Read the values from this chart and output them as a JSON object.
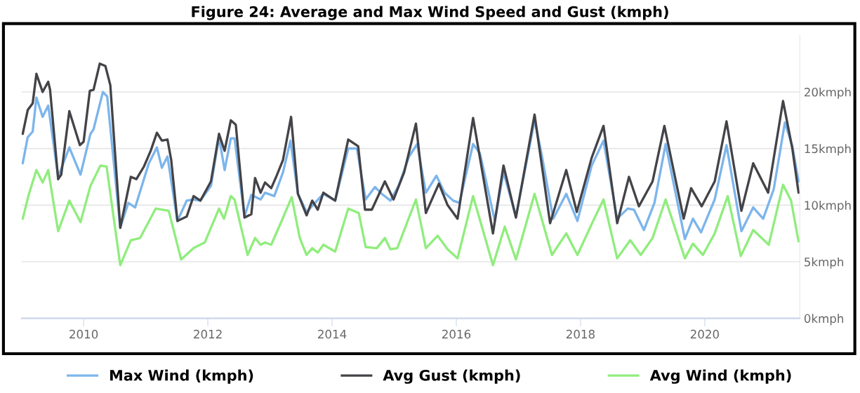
{
  "chart_data": {
    "type": "line",
    "title": "Figure 24: Average and Max Wind Speed and Gust (kmph)",
    "xlim": [
      2009.0,
      2021.53
    ],
    "xticks": [
      2010,
      2012,
      2014,
      2016,
      2018,
      2020
    ],
    "ylim": [
      0,
      25
    ],
    "yticks": [
      {
        "value": 0,
        "label": "0kmph"
      },
      {
        "value": 5,
        "label": "5kmph"
      },
      {
        "value": 10,
        "label": "10kmph"
      },
      {
        "value": 15,
        "label": "15kmph"
      },
      {
        "value": 20,
        "label": "20kmph"
      }
    ],
    "grid": "y",
    "legend": "bottom",
    "marker": "none",
    "line_style": "solid",
    "series": [
      {
        "name": "Max Wind (kmph)",
        "color": "#7cb5ec",
        "x": [
          2009.02,
          2009.1,
          2009.18,
          2009.24,
          2009.34,
          2009.43,
          2009.59,
          2009.77,
          2009.95,
          2010.11,
          2010.16,
          2010.31,
          2010.38,
          2010.59,
          2010.72,
          2010.83,
          2011.05,
          2011.18,
          2011.26,
          2011.35,
          2011.51,
          2011.66,
          2011.77,
          2011.88,
          2012.05,
          2012.18,
          2012.27,
          2012.37,
          2012.43,
          2012.59,
          2012.7,
          2012.85,
          2012.92,
          2013.07,
          2013.21,
          2013.33,
          2013.45,
          2013.59,
          2013.86,
          2014.05,
          2014.26,
          2014.4,
          2014.54,
          2014.69,
          2014.8,
          2014.94,
          2015.07,
          2015.24,
          2015.37,
          2015.51,
          2015.68,
          2015.81,
          2015.95,
          2016.05,
          2016.27,
          2016.38,
          2016.62,
          2016.76,
          2016.96,
          2017.26,
          2017.37,
          2017.56,
          2017.77,
          2017.95,
          2018.18,
          2018.37,
          2018.59,
          2018.76,
          2018.86,
          2019.02,
          2019.19,
          2019.37,
          2019.68,
          2019.81,
          2019.94,
          2020.16,
          2020.35,
          2020.59,
          2020.78,
          2020.94,
          2021.11,
          2021.29,
          2021.41,
          2021.51
        ],
        "values": [
          13.7,
          16.0,
          16.5,
          19.5,
          17.8,
          18.8,
          12.5,
          15.1,
          12.7,
          16.3,
          16.7,
          20.0,
          19.6,
          8.0,
          10.2,
          9.8,
          13.7,
          15.1,
          13.3,
          14.3,
          8.6,
          10.4,
          10.5,
          10.4,
          11.7,
          16.0,
          13.1,
          15.9,
          15.9,
          9.0,
          10.9,
          10.5,
          11.1,
          10.8,
          12.9,
          15.7,
          11.0,
          9.4,
          11.0,
          10.4,
          15.0,
          15.0,
          10.5,
          11.6,
          11.0,
          10.4,
          11.7,
          14.3,
          15.4,
          11.1,
          12.6,
          11.1,
          10.4,
          10.2,
          15.4,
          14.6,
          8.6,
          12.9,
          9.0,
          17.5,
          14.6,
          8.8,
          11.0,
          8.6,
          13.5,
          15.7,
          8.8,
          9.7,
          9.6,
          7.8,
          10.2,
          15.4,
          7.0,
          8.8,
          7.6,
          10.5,
          15.3,
          7.7,
          9.8,
          8.8,
          11.4,
          17.3,
          15.2,
          12.1
        ]
      },
      {
        "name": "Avg Gust (kmph)",
        "color": "#434348",
        "x": [
          2009.02,
          2009.1,
          2009.18,
          2009.24,
          2009.34,
          2009.43,
          2009.46,
          2009.59,
          2009.64,
          2009.77,
          2009.94,
          2010.0,
          2010.1,
          2010.16,
          2010.26,
          2010.35,
          2010.43,
          2010.59,
          2010.76,
          2010.85,
          2010.97,
          2011.08,
          2011.18,
          2011.26,
          2011.35,
          2011.41,
          2011.51,
          2011.66,
          2011.77,
          2011.88,
          2012.05,
          2012.18,
          2012.27,
          2012.37,
          2012.45,
          2012.59,
          2012.7,
          2012.76,
          2012.85,
          2012.92,
          2013.02,
          2013.1,
          2013.21,
          2013.34,
          2013.45,
          2013.59,
          2013.68,
          2013.77,
          2013.86,
          2014.05,
          2014.26,
          2014.42,
          2014.53,
          2014.64,
          2014.85,
          2014.99,
          2015.16,
          2015.35,
          2015.51,
          2015.72,
          2015.86,
          2016.02,
          2016.27,
          2016.59,
          2016.76,
          2016.96,
          2017.26,
          2017.51,
          2017.77,
          2017.94,
          2018.18,
          2018.37,
          2018.59,
          2018.78,
          2018.94,
          2019.16,
          2019.35,
          2019.66,
          2019.78,
          2019.95,
          2020.16,
          2020.35,
          2020.59,
          2020.78,
          2021.02,
          2021.26,
          2021.41,
          2021.51
        ],
        "values": [
          16.3,
          18.4,
          19.0,
          21.6,
          20.0,
          20.9,
          20.2,
          12.3,
          12.7,
          18.3,
          15.3,
          15.6,
          20.1,
          20.2,
          22.5,
          22.3,
          20.6,
          8.0,
          12.5,
          12.3,
          13.4,
          14.8,
          16.4,
          15.7,
          15.8,
          14.0,
          8.6,
          9.0,
          10.8,
          10.4,
          12.1,
          16.3,
          14.8,
          17.5,
          17.1,
          8.9,
          9.2,
          12.4,
          11.1,
          12.0,
          11.5,
          12.5,
          14.0,
          17.8,
          11.0,
          9.1,
          10.4,
          9.6,
          11.1,
          10.4,
          15.8,
          15.2,
          9.6,
          9.6,
          12.1,
          10.5,
          12.9,
          17.2,
          9.3,
          11.9,
          10.0,
          8.8,
          17.7,
          7.5,
          13.5,
          8.9,
          18.0,
          8.4,
          13.1,
          9.4,
          14.2,
          17.0,
          8.4,
          12.5,
          9.9,
          12.1,
          17.0,
          8.8,
          11.5,
          9.9,
          12.1,
          17.4,
          9.5,
          13.7,
          11.1,
          19.2,
          15.0,
          11.1
        ]
      },
      {
        "name": "Avg Wind (kmph)",
        "color": "#90ed7d",
        "x": [
          2009.02,
          2009.12,
          2009.24,
          2009.34,
          2009.43,
          2009.59,
          2009.77,
          2009.95,
          2010.11,
          2010.27,
          2010.37,
          2010.59,
          2010.76,
          2010.91,
          2011.16,
          2011.37,
          2011.57,
          2011.77,
          2011.95,
          2012.18,
          2012.26,
          2012.37,
          2012.43,
          2012.64,
          2012.76,
          2012.85,
          2012.92,
          2013.02,
          2013.18,
          2013.35,
          2013.48,
          2013.59,
          2013.68,
          2013.77,
          2013.86,
          2014.05,
          2014.26,
          2014.43,
          2014.54,
          2014.72,
          2014.85,
          2014.94,
          2015.05,
          2015.35,
          2015.51,
          2015.7,
          2015.86,
          2016.02,
          2016.27,
          2016.59,
          2016.78,
          2016.96,
          2017.26,
          2017.54,
          2017.77,
          2017.95,
          2018.22,
          2018.37,
          2018.59,
          2018.8,
          2018.97,
          2019.16,
          2019.37,
          2019.68,
          2019.81,
          2019.97,
          2020.16,
          2020.37,
          2020.58,
          2020.78,
          2021.03,
          2021.26,
          2021.39,
          2021.51
        ],
        "values": [
          8.8,
          11.0,
          13.1,
          12.0,
          13.1,
          7.7,
          10.4,
          8.5,
          11.7,
          13.5,
          13.4,
          4.7,
          6.9,
          7.1,
          9.7,
          9.5,
          5.2,
          6.2,
          6.7,
          9.7,
          8.8,
          10.8,
          10.5,
          5.6,
          7.1,
          6.5,
          6.7,
          6.5,
          8.5,
          10.7,
          7.1,
          5.6,
          6.2,
          5.8,
          6.5,
          5.9,
          9.7,
          9.3,
          6.3,
          6.2,
          7.1,
          6.1,
          6.2,
          10.5,
          6.2,
          7.3,
          6.1,
          5.3,
          10.8,
          4.7,
          8.1,
          5.2,
          11.0,
          5.6,
          7.5,
          5.6,
          8.8,
          10.5,
          5.3,
          6.9,
          5.6,
          7.1,
          10.5,
          5.3,
          6.6,
          5.6,
          7.5,
          10.8,
          5.5,
          7.8,
          6.5,
          11.8,
          10.4,
          6.8
        ]
      }
    ]
  }
}
